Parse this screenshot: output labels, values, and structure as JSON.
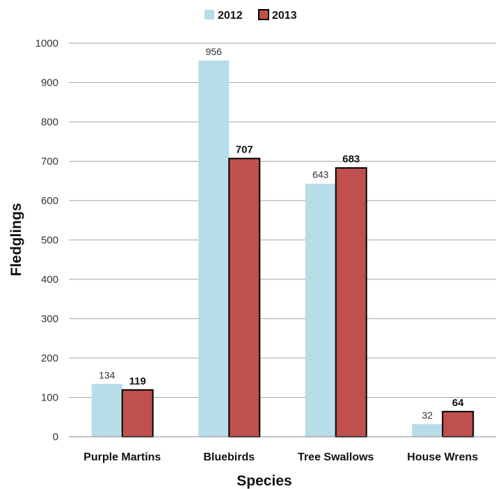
{
  "chart_data": {
    "type": "bar",
    "title": "",
    "xlabel": "Species",
    "ylabel": "Fledglings",
    "ylim": [
      0,
      1000
    ],
    "yticks": [
      0,
      100,
      200,
      300,
      400,
      500,
      600,
      700,
      800,
      900,
      1000
    ],
    "grid": true,
    "legend_position": "top-center",
    "categories": [
      "Purple Martins",
      "Bluebirds",
      "Tree Swallows",
      "House Wrens"
    ],
    "series": [
      {
        "name": "2012",
        "values": [
          134,
          956,
          643,
          32
        ],
        "color": "#b7dde8",
        "outline": false
      },
      {
        "name": "2013",
        "values": [
          119,
          707,
          683,
          64
        ],
        "color": "#c0504d",
        "outline": true
      }
    ]
  }
}
